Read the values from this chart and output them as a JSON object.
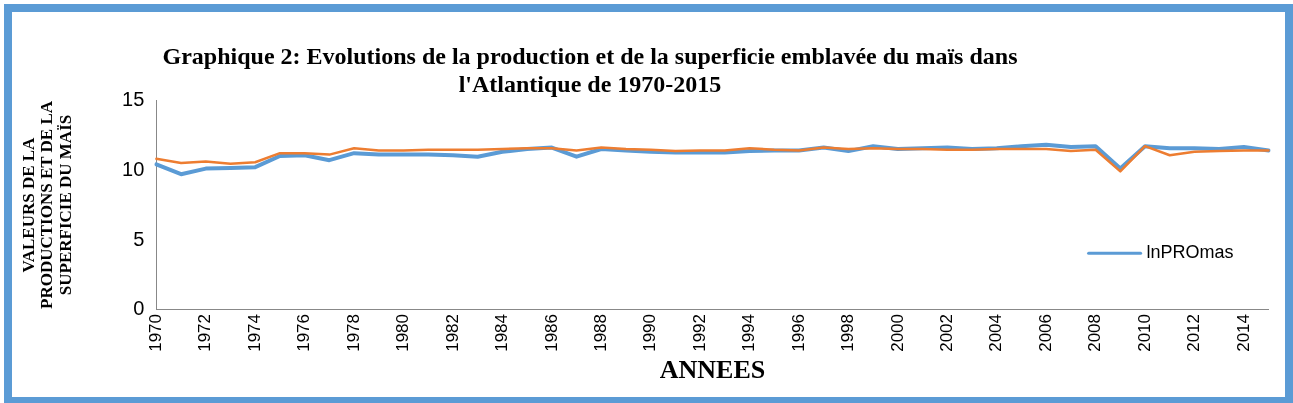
{
  "chart_data": {
    "type": "line",
    "title": "Graphique 2: Evolutions de la production et de la superficie emblavée du maïs dans l'Atlantique de 1970-2015",
    "xlabel": "ANNEES",
    "ylabel": "VALEURS DE LA PRODUCTIONS ET DE LA SUPERFICIE DU MAÏS",
    "categories": [
      "1970",
      null,
      "1972",
      null,
      "1974",
      null,
      "1976",
      null,
      "1978",
      null,
      "1980",
      null,
      "1982",
      null,
      "1984",
      null,
      "1986",
      null,
      "1988",
      null,
      "1990",
      null,
      "1992",
      null,
      "1994",
      null,
      "1996",
      null,
      "1998",
      null,
      "2000",
      null,
      "2002",
      null,
      "2004",
      null,
      "2006",
      null,
      "2008",
      null,
      "2010",
      null,
      "2012",
      null,
      "2014",
      null
    ],
    "series": [
      {
        "name": "lnPROmas",
        "color": "#5b9bd5",
        "values": [
          10.4,
          9.7,
          10.1,
          10.15,
          10.2,
          11.0,
          11.05,
          10.7,
          11.2,
          11.1,
          11.1,
          11.1,
          11.05,
          10.95,
          11.3,
          11.5,
          11.6,
          10.95,
          11.5,
          11.4,
          11.3,
          11.25,
          11.25,
          11.25,
          11.35,
          11.4,
          11.4,
          11.6,
          11.35,
          11.7,
          11.5,
          11.55,
          11.6,
          11.5,
          11.55,
          11.7,
          11.8,
          11.65,
          11.7,
          10.1,
          11.7,
          11.55,
          11.55,
          11.5,
          11.65,
          11.4
        ]
      },
      {
        "color": "#ed7d31",
        "values": [
          10.8,
          10.5,
          10.6,
          10.45,
          10.55,
          11.2,
          11.2,
          11.1,
          11.55,
          11.4,
          11.4,
          11.45,
          11.45,
          11.45,
          11.5,
          11.55,
          11.55,
          11.4,
          11.6,
          11.5,
          11.45,
          11.35,
          11.4,
          11.4,
          11.55,
          11.45,
          11.4,
          11.6,
          11.5,
          11.55,
          11.5,
          11.5,
          11.45,
          11.45,
          11.5,
          11.5,
          11.5,
          11.35,
          11.45,
          9.9,
          11.7,
          11.05,
          11.3,
          11.35,
          11.4,
          11.4
        ]
      }
    ],
    "ylim": [
      0,
      15
    ],
    "yticks": [
      0,
      5,
      10,
      15
    ],
    "grid": false,
    "legend": "right",
    "marker": "none",
    "line_style": "solid"
  }
}
